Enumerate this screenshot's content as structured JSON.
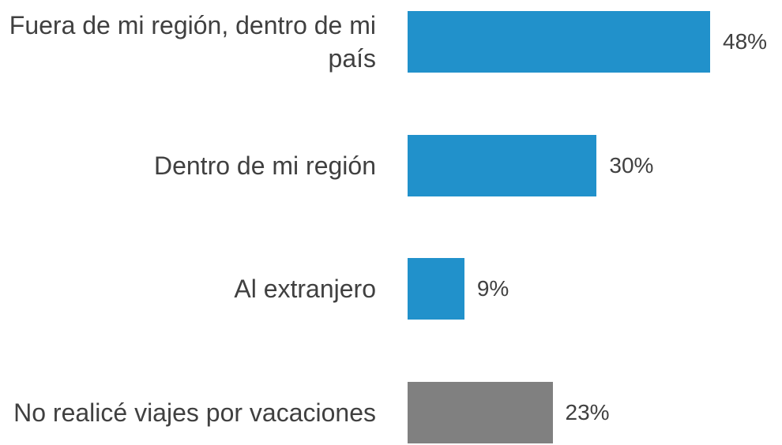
{
  "chart_data": {
    "type": "bar",
    "orientation": "horizontal",
    "categories": [
      "Fuera de mi región, dentro de mi país",
      "Dentro de mi región",
      "Al extranjero",
      "No realicé viajes por vacaciones"
    ],
    "values": [
      48,
      30,
      9,
      23
    ],
    "value_labels": [
      "48%",
      "30%",
      "9%",
      "23%"
    ],
    "colors": [
      "#2191cb",
      "#2191cb",
      "#2191cb",
      "#808080"
    ]
  }
}
